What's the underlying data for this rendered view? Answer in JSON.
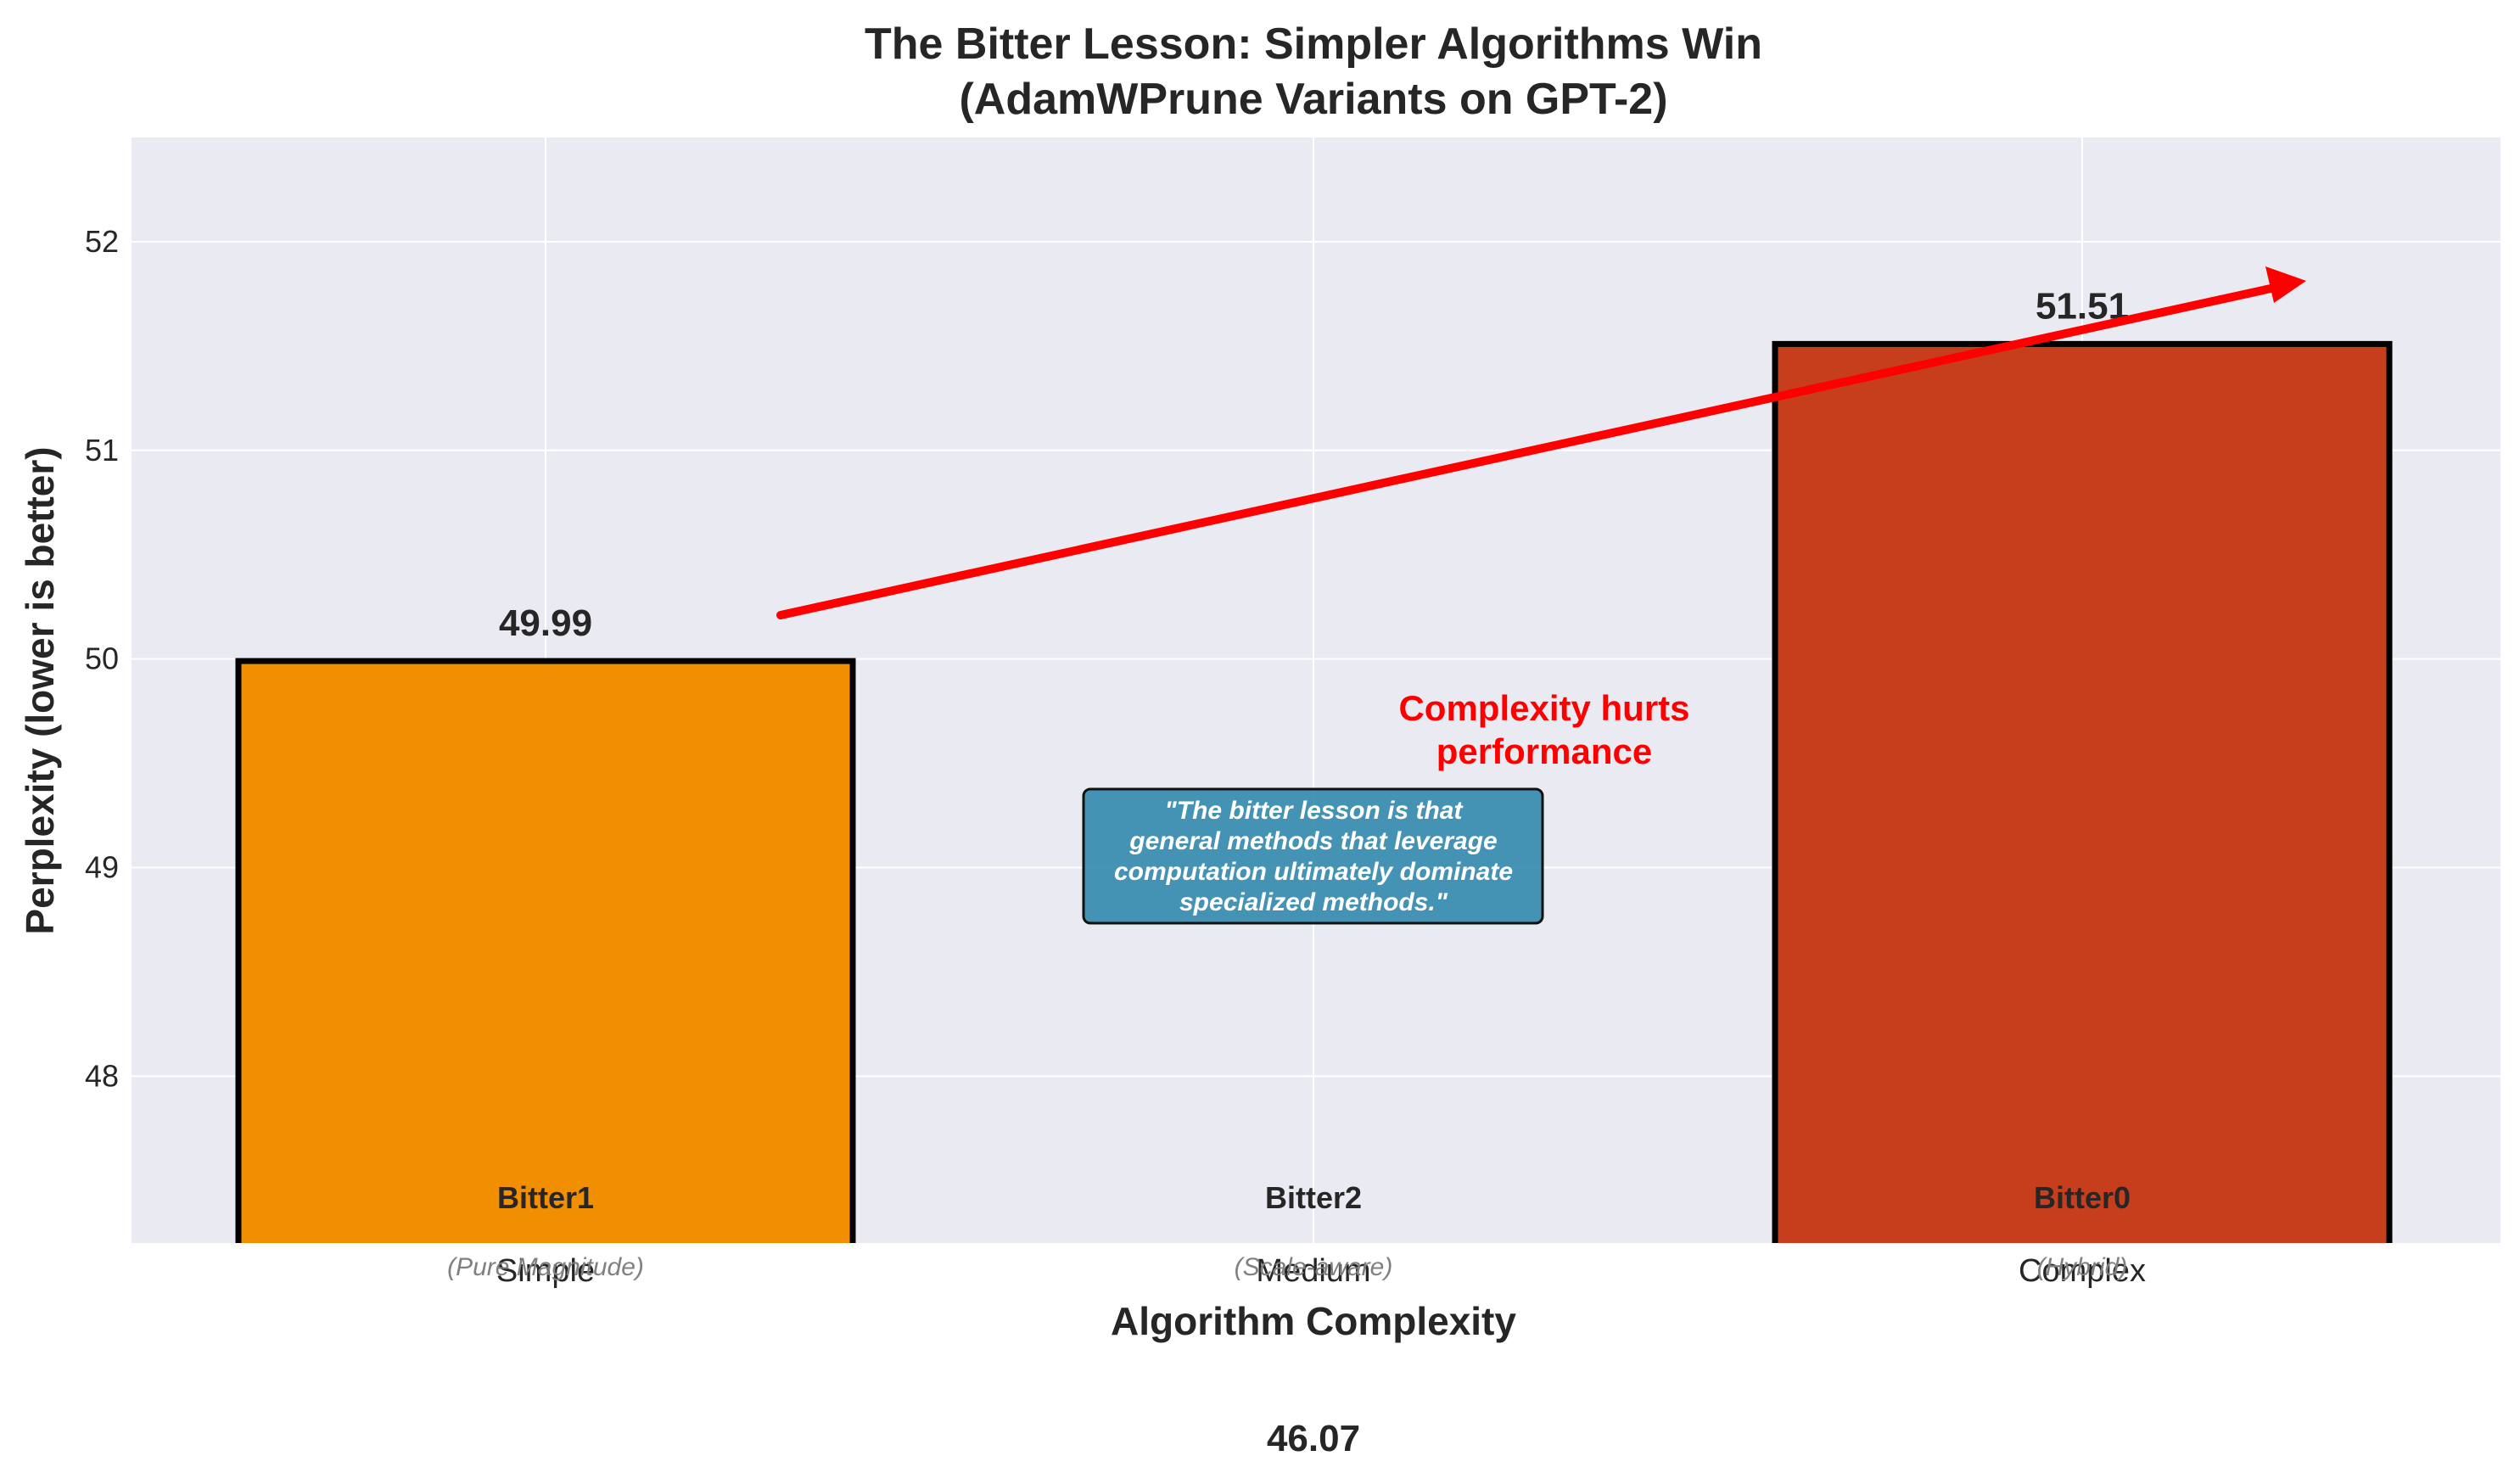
{
  "chart_data": {
    "type": "bar",
    "title": "The Bitter Lesson: Simpler Algorithms Win",
    "subtitle": "(AdamWPrune Variants on GPT-2)",
    "xlabel": "Algorithm Complexity",
    "ylabel": "Perplexity (lower is better)",
    "ylim": [
      47.2,
      52.5
    ],
    "yticks": [
      "48",
      "49",
      "50",
      "51",
      "52"
    ],
    "ytick_values": [
      48,
      49,
      50,
      51,
      52
    ],
    "categories": [
      "Simple",
      "Medium",
      "Complex"
    ],
    "values": [
      49.99,
      46.07,
      51.51
    ],
    "value_labels": [
      "49.99",
      "46.07",
      "51.51"
    ],
    "bar_names": [
      "Bitter1",
      "Bitter2",
      "Bitter0"
    ],
    "bar_descriptions": [
      "(Pure Magnitude)",
      "(Scale-aware)",
      "(Hybrid)"
    ],
    "bar_colors": [
      "#F18F01",
      "#2E86AB",
      "#C73E1D"
    ],
    "grid": true,
    "annotations": {
      "trend_label_lines": [
        "Complexity hurts",
        "performance"
      ],
      "trend_color": "#FF0000",
      "quote_lines": [
        "\"The bitter lesson is that",
        "general methods that leverage",
        "computation ultimately dominate",
        "specialized methods.\""
      ],
      "quote_box_color": "#2E86AB"
    }
  }
}
